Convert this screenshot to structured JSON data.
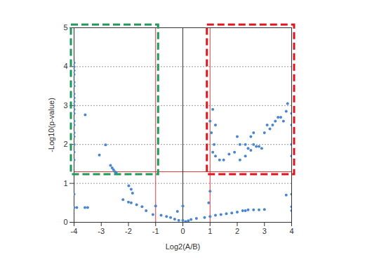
{
  "chart_data": {
    "type": "scatter",
    "xlabel": "Log2(A/B)",
    "ylabel": "-Log10(p-value)",
    "xlim": [
      -4,
      4
    ],
    "xticks": [
      -4,
      -3,
      -2,
      -1,
      0,
      1,
      2,
      3,
      4
    ],
    "ylim": [
      0,
      5
    ],
    "yticks": [
      0,
      1,
      2,
      3,
      4,
      5
    ],
    "grid": true,
    "color": "#4a86d0",
    "marker": "circle",
    "x": [
      -4,
      -4,
      -4,
      -4,
      -4,
      -4,
      -4,
      -4,
      -4,
      -4,
      -4,
      -4,
      -4,
      -4,
      -4,
      -4,
      -4,
      -4,
      -4,
      -4,
      -4,
      -3.9,
      -3.6,
      -3.5,
      -3.59,
      -2.84,
      -3.07,
      -2.66,
      -2.6,
      -2.55,
      -2.5,
      -2.45,
      -1.99,
      -1.9,
      -1.85,
      -2.2,
      -2.0,
      -1.9,
      -1.7,
      -1.5,
      -1.35,
      -1.1,
      -1.0,
      -0.8,
      -0.6,
      -0.45,
      -0.3,
      -0.2,
      -0.15,
      0,
      0,
      0.1,
      0.2,
      0.3,
      0.5,
      0.8,
      0.95,
      1.0,
      1.0,
      1.2,
      1.4,
      1.6,
      1.8,
      2.0,
      2.2,
      2.3,
      2.4,
      2.6,
      2.8,
      3.0,
      3.8,
      4.0,
      4.0,
      4.0,
      1.0,
      1.1,
      1.05,
      1.2,
      1.15,
      1.1,
      1.2,
      1.35,
      1.5,
      1.7,
      1.9,
      2.0,
      2.1,
      2.1,
      2.3,
      2.3,
      2.4,
      2.5,
      2.6,
      2.7,
      2.8,
      2.9,
      3.0,
      3.1,
      3.2,
      3.3,
      3.4,
      3.5,
      3.6,
      3.7,
      3.8,
      3.85,
      4.0,
      4.0,
      4.0,
      4.0,
      2.6,
      2.5
    ],
    "y": [
      4.1,
      4.0,
      3.9,
      3.8,
      3.6,
      3.5,
      3.3,
      3.2,
      3.1,
      3.0,
      2.9,
      2.8,
      2.6,
      2.5,
      2.3,
      2.2,
      2.0,
      1.8,
      1.6,
      0.72,
      0.38,
      0.38,
      0.38,
      0.38,
      2.76,
      1.99,
      1.73,
      1.46,
      1.4,
      1.35,
      1.3,
      1.28,
      0.94,
      0.85,
      0.75,
      0.58,
      0.52,
      0.5,
      0.45,
      0.4,
      0.3,
      0.2,
      0.42,
      0.18,
      0.15,
      0.12,
      0.08,
      0.28,
      0.05,
      0.05,
      0.42,
      0.02,
      0.04,
      0.07,
      0.1,
      0.12,
      0.5,
      0.15,
      0.8,
      0.18,
      0.2,
      0.22,
      0.24,
      0.26,
      0.3,
      0.3,
      0.32,
      0.32,
      0.32,
      0.33,
      0.7,
      0.72,
      0.4,
      0.3,
      2.6,
      2.9,
      2.3,
      2.5,
      2.0,
      1.8,
      1.7,
      1.6,
      1.6,
      1.75,
      1.8,
      2.2,
      2.0,
      1.6,
      1.7,
      2.0,
      1.9,
      2.2,
      2.0,
      1.95,
      1.95,
      1.9,
      2.3,
      2.5,
      2.4,
      2.5,
      2.6,
      2.7,
      2.7,
      2.6,
      2.85,
      3.05,
      2.8,
      2.5,
      2.0,
      1.7,
      2.3,
      1.85
    ],
    "thresholds": {
      "x": [
        -1,
        1
      ],
      "y": 1.3,
      "color": "#e03a3a"
    },
    "regions": [
      {
        "xlim": [
          -4,
          -1
        ],
        "ylim": [
          1.3,
          5
        ],
        "color": "#1f9a5a",
        "line_style": "dashed"
      },
      {
        "xlim": [
          1,
          4
        ],
        "ylim": [
          1.3,
          5
        ],
        "color": "#e0141e",
        "line_style": "dashed"
      }
    ]
  }
}
